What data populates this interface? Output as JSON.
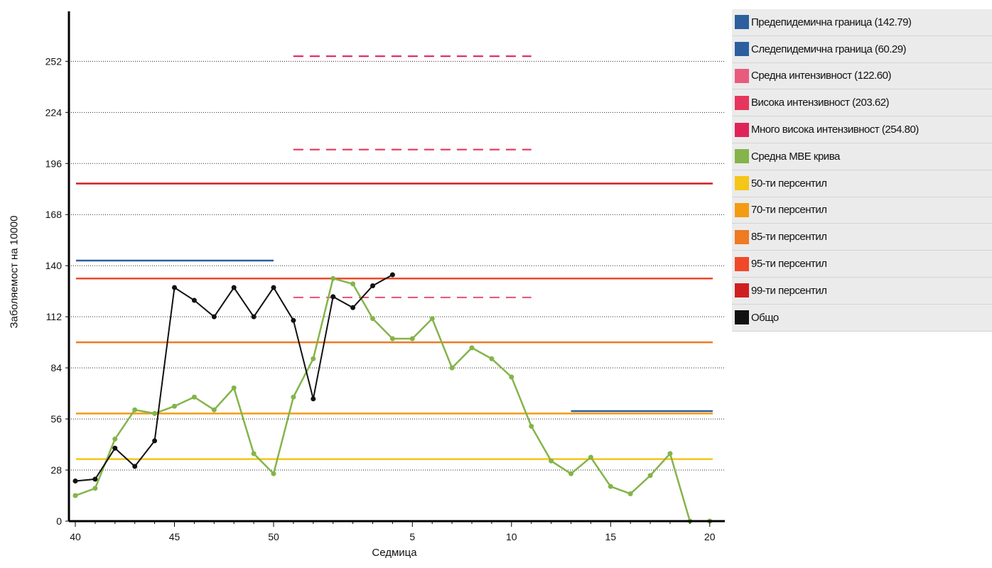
{
  "chart_data": {
    "type": "line",
    "xlabel": "Седмица",
    "ylabel": "Заболяемост на 10000",
    "ylim": [
      0,
      280
    ],
    "yticks": [
      0,
      28,
      56,
      84,
      112,
      140,
      168,
      196,
      224,
      252
    ],
    "x_positions": [
      "40",
      "41",
      "42",
      "43",
      "44",
      "45",
      "46",
      "47",
      "48",
      "49",
      "50",
      "51",
      "52",
      "1",
      "2",
      "3",
      "4",
      "5",
      "6",
      "7",
      "8",
      "9",
      "10",
      "11",
      "12",
      "13",
      "14",
      "15",
      "16",
      "17",
      "18",
      "19",
      "20"
    ],
    "xtick_labels": [
      {
        "index": 0,
        "label": "40"
      },
      {
        "index": 5,
        "label": "45"
      },
      {
        "index": 10,
        "label": "50"
      },
      {
        "index": 17,
        "label": "5"
      },
      {
        "index": 22,
        "label": "10"
      },
      {
        "index": 27,
        "label": "15"
      },
      {
        "index": 32,
        "label": "20"
      }
    ],
    "grid": "horizontal-dotted",
    "legend_position": "right",
    "series": [
      {
        "name": "Предепидемична граница (142.79)",
        "kind": "hline",
        "value": 142.79,
        "x_from": 0,
        "x_to": 10,
        "color": "#2c5f9e"
      },
      {
        "name": "Следепидемична граница (60.29)",
        "kind": "hline",
        "value": 60.29,
        "x_from": 25,
        "x_to": 32,
        "color": "#2c5f9e"
      },
      {
        "name": "Средна интензивност (122.60)",
        "kind": "hline-dashed",
        "value": 122.6,
        "x_from": 11,
        "x_to": 23,
        "color": "#e85b7d"
      },
      {
        "name": "Висока интензивност (203.62)",
        "kind": "hline-dashed",
        "value": 203.62,
        "x_from": 11,
        "x_to": 23,
        "color": "#e6365e"
      },
      {
        "name": "Много висока интензивност (254.80)",
        "kind": "hline-dashed",
        "value": 254.8,
        "x_from": 11,
        "x_to": 23,
        "color": "#e0245a"
      },
      {
        "name": "Средна МВЕ крива",
        "kind": "line",
        "color": "#84b44a",
        "values": [
          14,
          18,
          45,
          61,
          59,
          63,
          68,
          61,
          73,
          37,
          26,
          68,
          89,
          133,
          130,
          111,
          100,
          100,
          111,
          84,
          95,
          89,
          79,
          52,
          33,
          26,
          35,
          19,
          15,
          25,
          37,
          0,
          0
        ]
      },
      {
        "name": "50-ти персентил",
        "kind": "hline",
        "value": 34,
        "x_from": 0,
        "x_to": 32,
        "color": "#f5c518"
      },
      {
        "name": "70-ти персентил",
        "kind": "hline",
        "value": 59,
        "x_from": 0,
        "x_to": 32,
        "color": "#f39c12"
      },
      {
        "name": "85-ти персентил",
        "kind": "hline",
        "value": 98,
        "x_from": 0,
        "x_to": 32,
        "color": "#ee7a21"
      },
      {
        "name": "95-ти персентил",
        "kind": "hline",
        "value": 133,
        "x_from": 0,
        "x_to": 32,
        "color": "#f0492a"
      },
      {
        "name": "99-ти персентил",
        "kind": "hline",
        "value": 185,
        "x_from": 0,
        "x_to": 32,
        "color": "#d01f1f"
      },
      {
        "name": "Общо",
        "kind": "line",
        "color": "#111111",
        "values": [
          22,
          23,
          40,
          30,
          44,
          128,
          121,
          112,
          128,
          112,
          128,
          110,
          67,
          123,
          117,
          129,
          135
        ]
      }
    ]
  }
}
